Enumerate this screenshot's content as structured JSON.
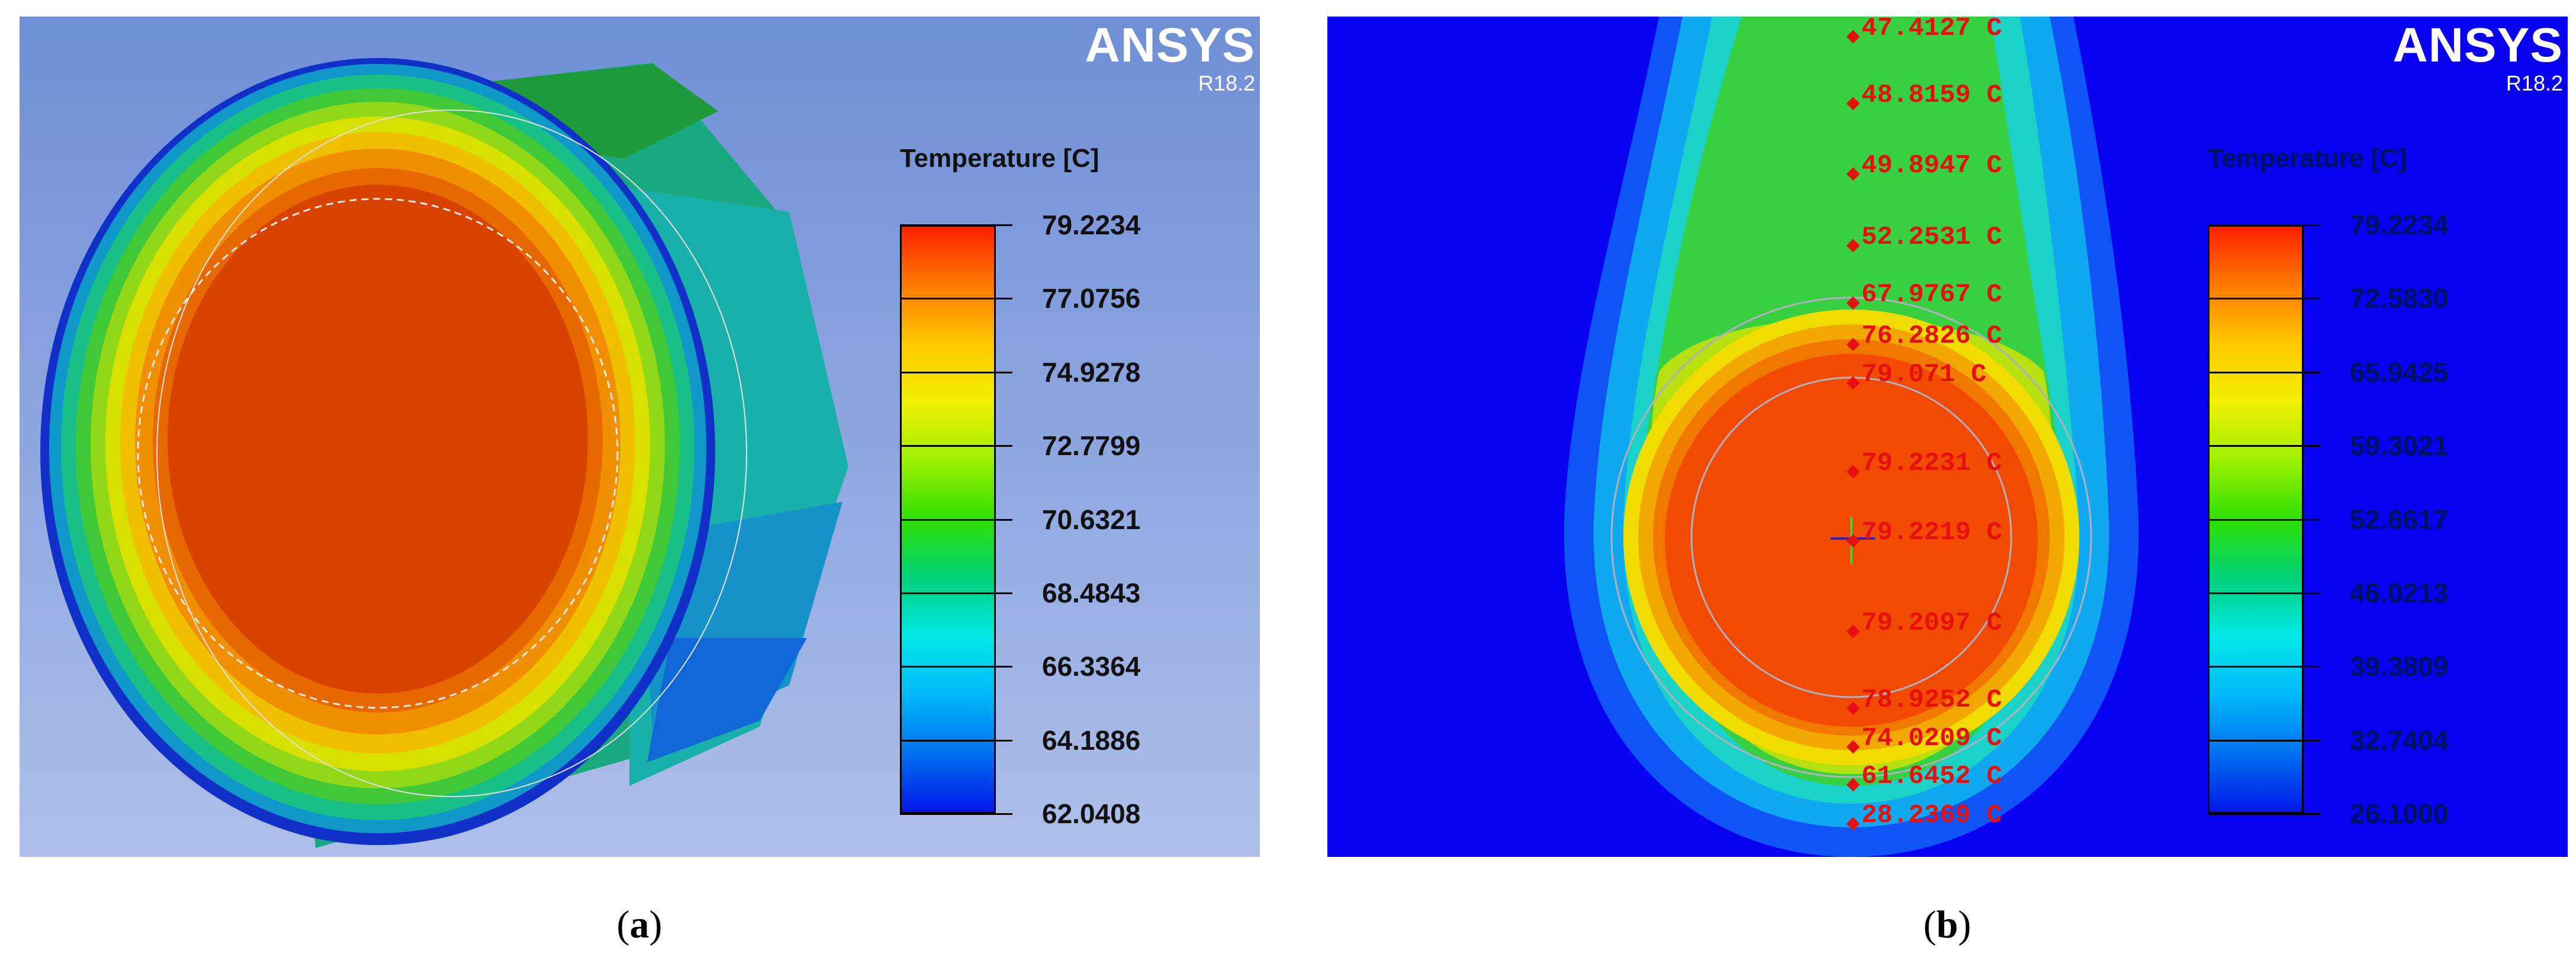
{
  "panels": [
    {
      "id": "a",
      "caption_letter": "a",
      "logo": "ANSYS",
      "version": "R18.2",
      "legend_title": "Temperature [C]",
      "ticks": [
        "79.2234",
        "77.0756",
        "74.9278",
        "72.7799",
        "70.6321",
        "68.4843",
        "66.3364",
        "64.1886",
        "62.0408"
      ]
    },
    {
      "id": "b",
      "caption_letter": "b",
      "logo": "ANSYS",
      "version": "R18.2",
      "legend_title": "Temperature [C]",
      "ticks": [
        "79.2234",
        "72.5830",
        "65.9425",
        "59.3021",
        "52.6617",
        "46.0213",
        "39.3809",
        "32.7404",
        "26.1000"
      ],
      "probes": [
        "47.4127 C",
        "48.8159 C",
        "49.8947 C",
        "52.2531 C",
        "67.9767 C",
        "76.2826 C",
        "79.071 C",
        "79.2231 C",
        "79.2219 C",
        "79.2097 C",
        "78.9252 C",
        "74.0209 C",
        "61.6452 C",
        "28.2369 C"
      ]
    }
  ],
  "colors": {
    "colorbar": [
      "#ff2000",
      "#ff7a00",
      "#ffc800",
      "#f0f000",
      "#9cf000",
      "#2ee000",
      "#00d07a",
      "#00e8e8",
      "#00b8f8",
      "#0070f0",
      "#0018e8"
    ],
    "probe": "#e51010"
  }
}
